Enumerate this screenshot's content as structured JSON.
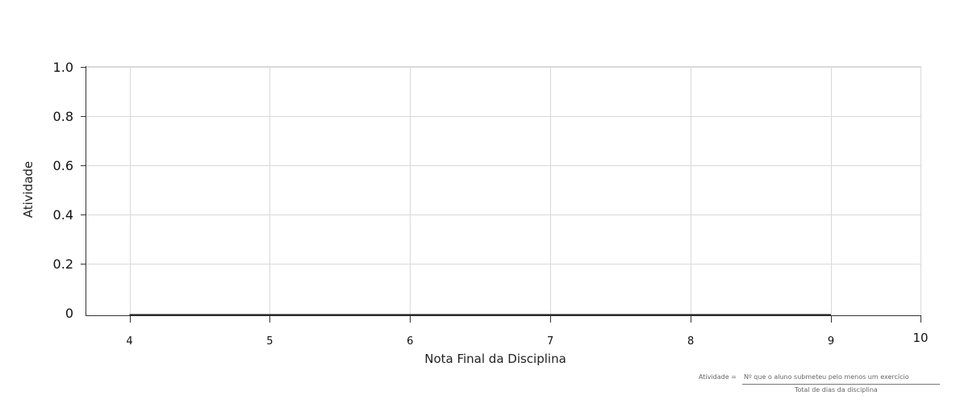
{
  "chart_data": {
    "type": "line",
    "xlabel": "Nota Final da Disciplina",
    "ylabel": "Atividade",
    "x_ticks": [
      "4",
      "5",
      "6",
      "7",
      "8",
      "9",
      "10"
    ],
    "y_ticks": [
      "0",
      "0.2",
      "0.4",
      "0.6",
      "0.8",
      "1.0"
    ],
    "xlim": [
      3.69,
      9.66
    ],
    "ylim": [
      -0.029,
      1.0
    ],
    "grid": true,
    "series": [
      {
        "x": [
          4,
          5,
          6,
          7,
          8,
          9
        ],
        "y": [
          0,
          0,
          0,
          0,
          0,
          0
        ]
      }
    ],
    "colors": {
      "line": "#222222",
      "grid": "#d9d9d9",
      "axis": "#333333"
    }
  },
  "formula": {
    "lhs": "Atividade =",
    "numerator": "Nº que o aluno submeteu pelo menos um exercício",
    "denominator": "Total de dias da disciplina"
  }
}
